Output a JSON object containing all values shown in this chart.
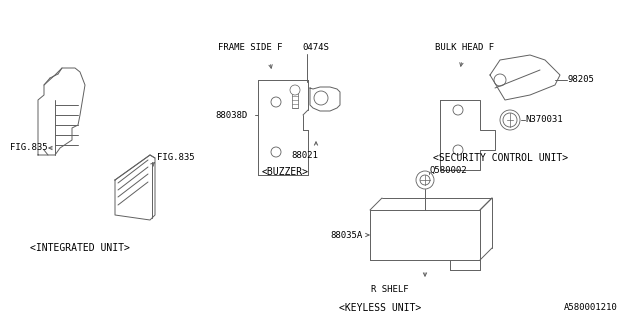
{
  "background_color": "#ffffff",
  "line_color": "#606060",
  "text_color": "#000000",
  "fig_width": 6.4,
  "fig_height": 3.2,
  "dpi": 100,
  "footer_code": "A580001210",
  "labels": {
    "frame_side_f": "FRAME SIDE F",
    "bulk_head_f": "BULK HEAD F",
    "p0474S": "0474S",
    "p88038D": "88038D",
    "p88021": "88021",
    "p98205": "98205",
    "pN370031": "N370031",
    "pQ580002": "Q580002",
    "p88035A": "88035A",
    "fig835": "FIG.835",
    "buzzer": "<BUZZER>",
    "security": "<SECURITY CONTROL UNIT>",
    "integrated": "<INTEGRATED UNIT>",
    "keyless": "<KEYLESS UNIT>",
    "rshelf": "R SHELF"
  }
}
